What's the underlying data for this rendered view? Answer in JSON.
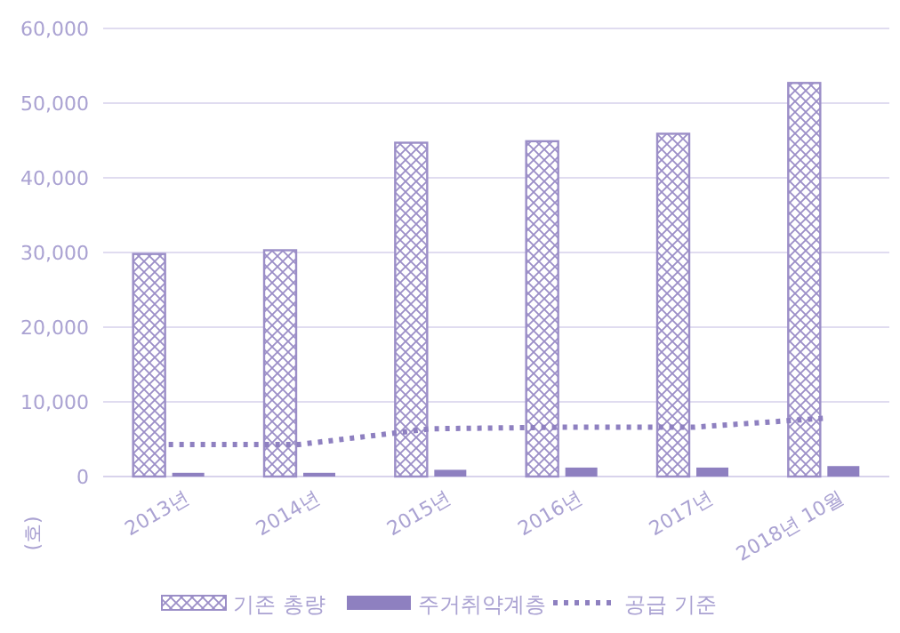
{
  "chart_data": {
    "type": "bar",
    "categories": [
      "2013년",
      "2014년",
      "2015년",
      "2016년",
      "2017년",
      "2018년 10월"
    ],
    "series": [
      {
        "name": "기존 총량",
        "color": "#9b8ec7",
        "values": [
          29800,
          30300,
          44700,
          44900,
          45900,
          52700
        ]
      },
      {
        "name": "주거취약계층",
        "color": "#8e80c0",
        "values": [
          500,
          500,
          900,
          1200,
          1200,
          1400
        ]
      },
      {
        "name": "공급 기준",
        "type": "line",
        "line_style": "dotted",
        "color": "#8e80c0",
        "values": [
          4300,
          4300,
          6400,
          6600,
          6600,
          7800
        ]
      }
    ],
    "ylabel": "(호)",
    "ylim": [
      0,
      60000
    ],
    "yticks": [
      {
        "value": 0,
        "label": "0"
      },
      {
        "value": 10000,
        "label": "10,000"
      },
      {
        "value": 20000,
        "label": "20,000"
      },
      {
        "value": 30000,
        "label": "30,000"
      },
      {
        "value": 40000,
        "label": "40,000"
      },
      {
        "value": 50000,
        "label": "50,000"
      },
      {
        "value": 60000,
        "label": "60,000"
      }
    ],
    "grid": "y",
    "legend": "bottom",
    "marker": "none"
  }
}
